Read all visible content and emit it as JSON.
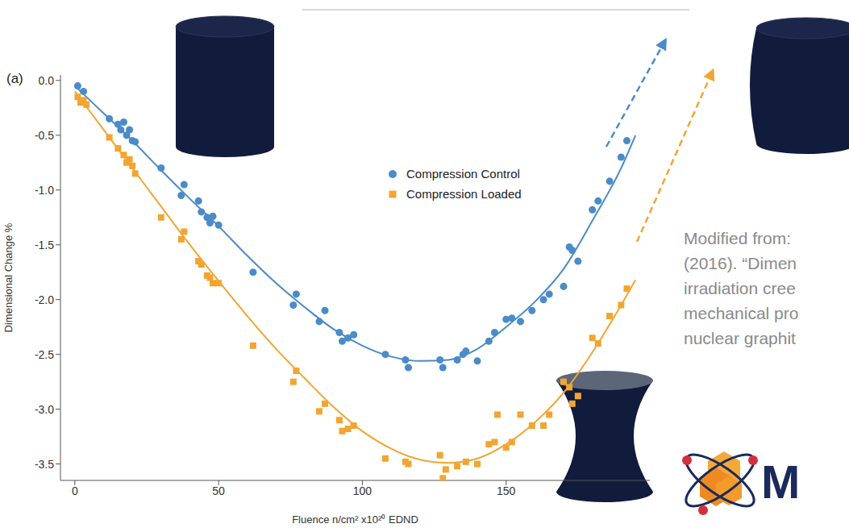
{
  "chart_data": {
    "type": "scatter",
    "panel_label": "(a)",
    "x_label": "Fluence n/cm² x10²⁰ EDND",
    "y_label": "Dimensional Change %",
    "xlim": [
      -5,
      200
    ],
    "xticks": [
      0,
      50,
      100,
      150
    ],
    "ylim": [
      -3.65,
      0.05
    ],
    "yticks": [
      {
        "value": 0,
        "label": "0.0"
      },
      -0.5,
      {
        "value": -1,
        "label": "-1.0"
      },
      -1.5,
      {
        "value": -2,
        "label": "-2.0"
      },
      -2.5,
      {
        "value": -3,
        "label": "-3.0"
      },
      -3.5
    ],
    "grid": false,
    "legend": "upper center",
    "series": [
      {
        "name": "Compression Control",
        "color": "#4a8bc8",
        "marker": "circle",
        "x": [
          1,
          3,
          12,
          15,
          16,
          17,
          18,
          19,
          20,
          21,
          30,
          37,
          38,
          43,
          44,
          46,
          47,
          48,
          50,
          62,
          76,
          77,
          85,
          87,
          92,
          93,
          95,
          97,
          108,
          115,
          116,
          127,
          128,
          133,
          135,
          136,
          140,
          144,
          146,
          150,
          152,
          155,
          159,
          163,
          165,
          170,
          172,
          173,
          175,
          180,
          182,
          186,
          190,
          192
        ],
        "values": [
          -0.05,
          -0.1,
          -0.35,
          -0.4,
          -0.45,
          -0.38,
          -0.5,
          -0.45,
          -0.55,
          -0.56,
          -0.8,
          -1.05,
          -0.95,
          -1.1,
          -1.2,
          -1.25,
          -1.3,
          -1.24,
          -1.32,
          -1.75,
          -2.05,
          -1.95,
          -2.2,
          -2.1,
          -2.3,
          -2.38,
          -2.35,
          -2.32,
          -2.5,
          -2.55,
          -2.62,
          -2.55,
          -2.62,
          -2.55,
          -2.5,
          -2.47,
          -2.56,
          -2.38,
          -2.3,
          -2.18,
          -2.17,
          -2.2,
          -2.1,
          -2.0,
          -1.95,
          -1.88,
          -1.52,
          -1.55,
          -1.65,
          -1.18,
          -1.1,
          -0.92,
          -0.7,
          -0.55
        ],
        "fit_x": [
          0,
          10,
          20,
          30,
          40,
          50,
          60,
          70,
          80,
          90,
          100,
          110,
          120,
          130,
          140,
          150,
          160,
          170,
          180,
          190,
          195
        ],
        "fit_values": [
          -0.05,
          -0.3,
          -0.55,
          -0.82,
          -1.08,
          -1.33,
          -1.6,
          -1.85,
          -2.07,
          -2.27,
          -2.42,
          -2.52,
          -2.56,
          -2.55,
          -2.45,
          -2.25,
          -2.02,
          -1.72,
          -1.28,
          -0.8,
          -0.5
        ]
      },
      {
        "name": "Compression Loaded",
        "color": "#f2a531",
        "marker": "square",
        "x": [
          1,
          2,
          3,
          4,
          12,
          15,
          17,
          18,
          19,
          20,
          21,
          30,
          37,
          38,
          43,
          44,
          46,
          47,
          48,
          50,
          62,
          76,
          77,
          85,
          87,
          92,
          93,
          95,
          97,
          108,
          115,
          116,
          127,
          128,
          129,
          133,
          136,
          140,
          144,
          146,
          147,
          150,
          152,
          155,
          159,
          163,
          165,
          170,
          172,
          173,
          175,
          180,
          182,
          186,
          190,
          192
        ],
        "values": [
          -0.15,
          -0.2,
          -0.18,
          -0.22,
          -0.52,
          -0.62,
          -0.68,
          -0.75,
          -0.72,
          -0.78,
          -0.85,
          -1.25,
          -1.45,
          -1.38,
          -1.65,
          -1.68,
          -1.78,
          -1.8,
          -1.85,
          -1.85,
          -2.42,
          -2.75,
          -2.65,
          -3.02,
          -2.95,
          -3.1,
          -3.2,
          -3.18,
          -3.15,
          -3.45,
          -3.48,
          -3.5,
          -3.42,
          -3.63,
          -3.55,
          -3.52,
          -3.48,
          -3.5,
          -3.32,
          -3.3,
          -3.05,
          -3.35,
          -3.3,
          -3.05,
          -3.15,
          -3.15,
          -3.05,
          -2.75,
          -2.8,
          -2.95,
          -2.88,
          -2.35,
          -2.4,
          -2.15,
          -2.05,
          -1.9
        ],
        "fit_x": [
          0,
          10,
          20,
          30,
          40,
          50,
          60,
          70,
          80,
          90,
          100,
          110,
          120,
          130,
          140,
          150,
          160,
          170,
          180,
          190,
          195
        ],
        "fit_values": [
          -0.1,
          -0.45,
          -0.8,
          -1.15,
          -1.5,
          -1.83,
          -2.15,
          -2.45,
          -2.72,
          -2.98,
          -3.2,
          -3.36,
          -3.46,
          -3.49,
          -3.45,
          -3.32,
          -3.12,
          -2.85,
          -2.48,
          -2.05,
          -1.82
        ]
      }
    ]
  },
  "citation": [
    "Modified from:",
    "(2016). “Dimen",
    "irradiation cree",
    "mechanical pro",
    "nuclear graphit"
  ],
  "logo_text": "M"
}
